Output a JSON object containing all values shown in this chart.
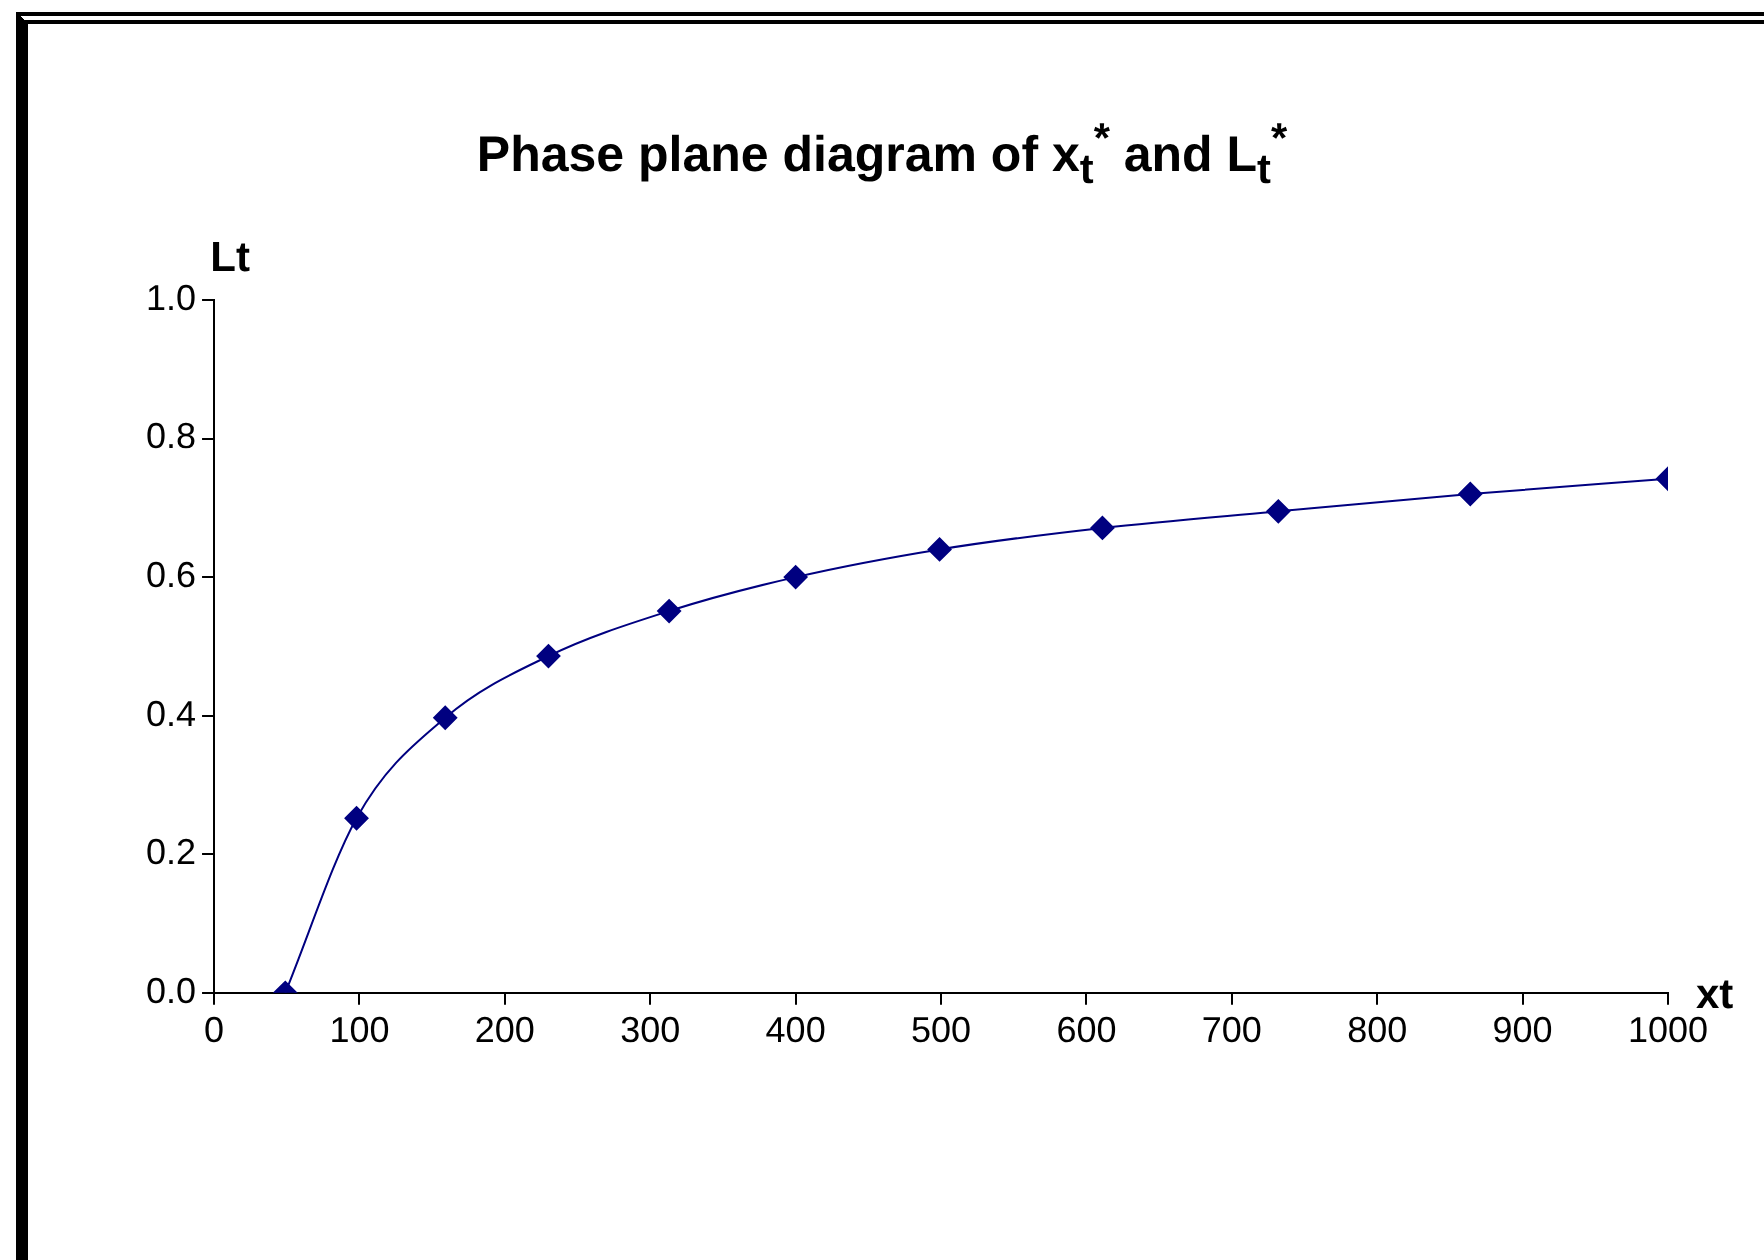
{
  "chart_data": {
    "type": "line",
    "title": "Phase plane diagram of x$_{t}$$^{*}$ and L$_{t}$$^{*}$",
    "xlabel": "xt",
    "ylabel": "Lt",
    "x": [
      49,
      98,
      159,
      230,
      313,
      400,
      499,
      611,
      732,
      864,
      1000
    ],
    "series": [
      {
        "color": "#000080",
        "values": [
          0,
          0.252,
          0.397,
          0.486,
          0.551,
          0.6,
          0.64,
          0.671,
          0.695,
          0.72,
          0.742
        ]
      }
    ],
    "xlim": [
      0,
      1000
    ],
    "xticks": [
      0,
      100,
      200,
      300,
      400,
      500,
      600,
      700,
      800,
      900,
      1000
    ],
    "ylim": [
      0,
      1
    ],
    "yticks": [
      {
        "value": 0,
        "label": "0.0"
      },
      {
        "value": 0.2,
        "label": "0.2"
      },
      {
        "value": 0.4,
        "label": "0.4"
      },
      {
        "value": 0.6,
        "label": "0.6"
      },
      {
        "value": 0.8,
        "label": "0.8"
      },
      {
        "value": 1,
        "label": "1.0"
      }
    ],
    "grid": false,
    "legend": false,
    "marker": "diamond",
    "line_style": "solid"
  }
}
